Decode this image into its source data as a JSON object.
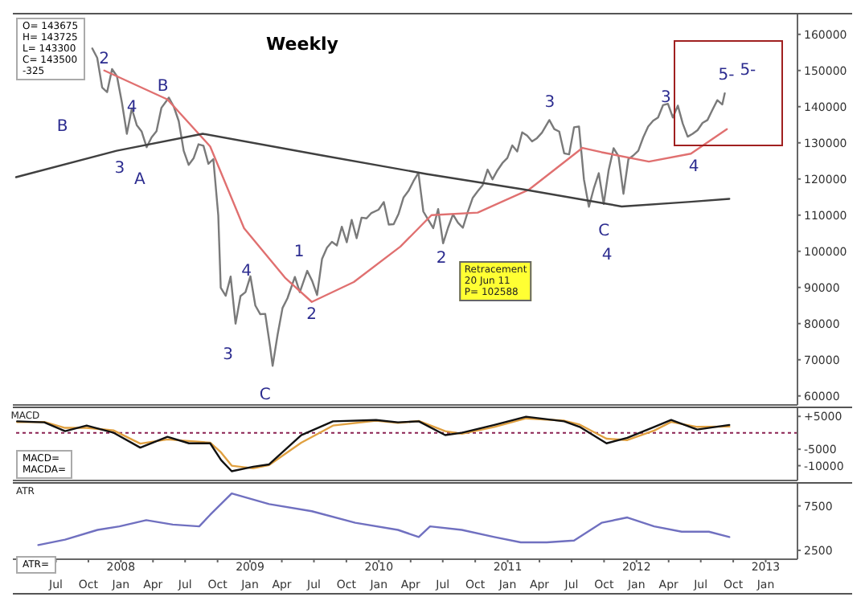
{
  "chart_data": [
    {
      "type": "line",
      "title": "Weekly",
      "xlim": [
        "2007-03-01",
        "2013-04-01"
      ],
      "ylim": [
        57500,
        165500
      ],
      "yticks": [
        60000,
        70000,
        80000,
        90000,
        100000,
        110000,
        120000,
        130000,
        140000,
        150000,
        160000
      ],
      "tick_labels": "y",
      "series": [
        {
          "color": "#7a7a7a",
          "x": [
            "2007-10-12",
            "2007-10-26",
            "2007-11-09",
            "2007-11-23",
            "2007-12-07",
            "2007-12-21",
            "2008-01-04",
            "2008-01-18",
            "2008-02-01",
            "2008-02-15",
            "2008-02-29",
            "2008-03-14",
            "2008-03-28",
            "2008-04-11",
            "2008-04-25",
            "2008-05-16",
            "2008-05-30",
            "2008-06-13",
            "2008-06-27",
            "2008-07-11",
            "2008-07-25",
            "2008-08-08",
            "2008-08-22",
            "2008-09-05",
            "2008-09-19",
            "2008-10-03",
            "2008-10-10",
            "2008-10-24",
            "2008-11-07",
            "2008-11-21",
            "2008-12-05",
            "2008-12-19",
            "2009-01-02",
            "2009-01-16",
            "2009-01-30",
            "2009-02-13",
            "2009-02-27",
            "2009-03-06",
            "2009-03-20",
            "2009-04-03",
            "2009-04-17",
            "2009-05-08",
            "2009-05-22",
            "2009-06-12",
            "2009-06-26",
            "2009-07-10",
            "2009-07-24",
            "2009-08-07",
            "2009-08-21",
            "2009-09-04",
            "2009-09-18",
            "2009-10-02",
            "2009-10-16",
            "2009-10-30",
            "2009-11-13",
            "2009-11-27",
            "2009-12-11",
            "2009-12-31",
            "2010-01-15",
            "2010-01-29",
            "2010-02-12",
            "2010-02-26",
            "2010-03-12",
            "2010-03-26",
            "2010-04-09",
            "2010-04-23",
            "2010-05-07",
            "2010-05-21",
            "2010-06-04",
            "2010-06-18",
            "2010-07-02",
            "2010-07-16",
            "2010-07-30",
            "2010-08-13",
            "2010-08-27",
            "2010-09-10",
            "2010-09-24",
            "2010-10-08",
            "2010-10-22",
            "2010-11-05",
            "2010-11-19",
            "2010-12-03",
            "2010-12-17",
            "2010-12-31",
            "2011-01-14",
            "2011-01-28",
            "2011-02-11",
            "2011-02-25",
            "2011-03-11",
            "2011-03-25",
            "2011-04-08",
            "2011-04-29",
            "2011-05-13",
            "2011-05-27",
            "2011-06-10",
            "2011-06-24",
            "2011-07-08",
            "2011-07-22",
            "2011-08-05",
            "2011-08-19",
            "2011-09-02",
            "2011-09-16",
            "2011-09-30",
            "2011-10-14",
            "2011-10-28",
            "2011-11-11",
            "2011-11-25",
            "2011-12-09",
            "2011-12-23",
            "2012-01-06",
            "2012-01-20",
            "2012-02-03",
            "2012-02-17",
            "2012-03-02",
            "2012-03-16",
            "2012-03-30",
            "2012-04-13",
            "2012-04-27",
            "2012-05-11",
            "2012-05-25",
            "2012-06-08",
            "2012-06-22",
            "2012-07-06",
            "2012-07-20",
            "2012-08-03",
            "2012-08-17",
            "2012-08-31",
            "2012-09-07"
          ],
          "values": [
            156100,
            153500,
            145300,
            144000,
            150400,
            148400,
            141100,
            132500,
            139500,
            134900,
            133100,
            128800,
            131500,
            133200,
            139700,
            142500,
            140000,
            136000,
            127800,
            123900,
            125700,
            129600,
            129200,
            124200,
            125500,
            109900,
            89900,
            87700,
            93000,
            80000,
            87600,
            88700,
            93100,
            85000,
            82600,
            82700,
            73500,
            68300,
            76900,
            84300,
            87000,
            92900,
            88700,
            94600,
            91800,
            87900,
            97900,
            101000,
            102600,
            101600,
            106800,
            102500,
            108700,
            103600,
            109300,
            109100,
            110600,
            111500,
            113600,
            107400,
            107500,
            110400,
            114900,
            116700,
            119400,
            121700,
            111000,
            108700,
            106400,
            111700,
            102200,
            106500,
            110200,
            107900,
            106500,
            110900,
            114800,
            116600,
            118300,
            122600,
            119900,
            122400,
            124400,
            125800,
            129300,
            127600,
            132900,
            132000,
            130400,
            131300,
            132800,
            136300,
            133800,
            133100,
            127100,
            126800,
            134300,
            134500,
            119900,
            112300,
            117400,
            121600,
            113100,
            122400,
            128500,
            126300,
            115900,
            125500,
            126500,
            127800,
            131500,
            134500,
            136100,
            137000,
            140400,
            140800,
            137000,
            140300,
            135300,
            131700,
            132500,
            133500,
            135500,
            136300,
            139100,
            141800,
            140600,
            143700
          ]
        },
        {
          "color": "#e07070",
          "x": [
            "2007-11-15",
            "2008-05-12",
            "2008-09-10",
            "2008-12-15",
            "2009-04-10",
            "2009-06-25",
            "2009-10-22",
            "2010-03-03",
            "2010-05-30",
            "2010-10-08",
            "2011-03-03",
            "2011-08-01",
            "2011-09-24",
            "2012-02-05",
            "2012-06-03",
            "2012-09-13"
          ],
          "values": [
            150000,
            142000,
            129000,
            106400,
            92700,
            86000,
            91500,
            101300,
            110000,
            110700,
            117100,
            128600,
            127400,
            124800,
            127000,
            133800
          ]
        },
        {
          "color": "#404040",
          "x": [
            "2007-03-10",
            "2007-12-20",
            "2008-08-20",
            "2009-07-25",
            "2010-05-15",
            "2011-02-15",
            "2011-11-20",
            "2012-06-03",
            "2012-09-20"
          ],
          "values": [
            120500,
            127800,
            132500,
            126500,
            121400,
            117100,
            112400,
            113700,
            114500
          ]
        }
      ],
      "annotations": [
        "O= 143675",
        "H= 143725",
        "L= 143300",
        "C= 143500",
        "-325",
        "B",
        "2",
        "3",
        "4",
        "A",
        "B",
        "3",
        "4",
        "C",
        "1",
        "2",
        "2",
        "3",
        "C",
        "4",
        "Retracement\n20 Jun 11\nP=   102588",
        "3",
        "4",
        "5-",
        "5-"
      ]
    },
    {
      "type": "line",
      "xlim": [
        "2007-03-01",
        "2013-04-01"
      ],
      "ylim": [
        -14500,
        7500
      ],
      "yticks": [
        {
          "value": 5000,
          "label": "+5000"
        },
        -5000,
        -10000
      ],
      "tick_labels": "y",
      "ref_lines": [
        {
          "axis": "y",
          "value": 0,
          "color": "#8b2252",
          "line_style": "dotted"
        }
      ],
      "annotations": [
        "MACD",
        "MACD=",
        "MACDA="
      ],
      "series": [
        {
          "color": "#e0a040",
          "x": [
            "2007-03-13",
            "2007-05-29",
            "2007-07-27",
            "2007-09-26",
            "2007-12-12",
            "2008-02-25",
            "2008-05-12",
            "2008-07-12",
            "2008-09-10",
            "2008-10-11",
            "2008-11-10",
            "2009-01-10",
            "2009-02-24",
            "2009-05-26",
            "2009-08-24",
            "2009-12-24",
            "2010-02-24",
            "2010-04-24",
            "2010-07-08",
            "2010-08-24",
            "2010-11-24",
            "2011-02-22",
            "2011-06-10",
            "2011-07-24",
            "2011-10-08",
            "2011-12-06",
            "2012-02-20",
            "2012-04-08",
            "2012-06-21",
            "2012-09-20"
          ],
          "values": [
            3300,
            3300,
            1500,
            1500,
            700,
            -3300,
            -2000,
            -2500,
            -3000,
            -6000,
            -10000,
            -10800,
            -9800,
            -3000,
            2200,
            3700,
            3000,
            3600,
            500,
            -300,
            1800,
            4400,
            3700,
            2500,
            -1800,
            -2200,
            700,
            3300,
            1800,
            1900
          ]
        },
        {
          "color": "#111111",
          "x": [
            "2007-03-13",
            "2007-05-29",
            "2007-07-27",
            "2007-09-26",
            "2007-12-12",
            "2008-02-25",
            "2008-05-12",
            "2008-07-12",
            "2008-09-10",
            "2008-10-11",
            "2008-11-10",
            "2009-01-10",
            "2009-02-24",
            "2009-05-26",
            "2009-08-24",
            "2009-12-24",
            "2010-02-24",
            "2010-04-24",
            "2010-07-08",
            "2010-08-24",
            "2010-11-24",
            "2011-02-22",
            "2011-06-10",
            "2011-07-24",
            "2011-10-08",
            "2011-12-06",
            "2012-02-20",
            "2012-04-08",
            "2012-06-21",
            "2012-09-20"
          ],
          "values": [
            3500,
            3200,
            500,
            2200,
            0,
            -4500,
            -1200,
            -3200,
            -3200,
            -8300,
            -11700,
            -10300,
            -9600,
            -700,
            3500,
            3900,
            3200,
            3500,
            -700,
            0,
            2400,
            4900,
            3500,
            1800,
            -3200,
            -1500,
            1800,
            3900,
            1000,
            2400
          ]
        }
      ]
    },
    {
      "type": "line",
      "xlim": [
        "2007-03-01",
        "2013-04-01"
      ],
      "ylim": [
        1500,
        10000
      ],
      "yticks": [
        2500,
        7500
      ],
      "annotations": [
        "ATR",
        "ATR="
      ],
      "x2lim": [
        "2007-03-01",
        "2013-04-01"
      ],
      "xticks": [
        {
          "value": "2007-07",
          "label": "Jul"
        },
        {
          "value": "2007-10",
          "label": "Oct"
        },
        {
          "value": "2008-01",
          "label": "Jan"
        },
        {
          "value": "2008-04",
          "label": "Apr"
        },
        {
          "value": "2008-07",
          "label": "Jul"
        },
        {
          "value": "2008-10",
          "label": "Oct"
        },
        {
          "value": "2009-01",
          "label": "Jan"
        },
        {
          "value": "2009-04",
          "label": "Apr"
        },
        {
          "value": "2009-07",
          "label": "Jul"
        },
        {
          "value": "2009-10",
          "label": "Oct"
        },
        {
          "value": "2010-01",
          "label": "Jan"
        },
        {
          "value": "2010-04",
          "label": "Apr"
        },
        {
          "value": "2010-07",
          "label": "Jul"
        },
        {
          "value": "2010-10",
          "label": "Oct"
        },
        {
          "value": "2011-01",
          "label": "Jan"
        },
        {
          "value": "2011-04",
          "label": "Apr"
        },
        {
          "value": "2011-07",
          "label": "Jul"
        },
        {
          "value": "2011-10",
          "label": "Oct"
        },
        {
          "value": "2012-01",
          "label": "Jan"
        },
        {
          "value": "2012-04",
          "label": "Apr"
        },
        {
          "value": "2012-07",
          "label": "Jul"
        },
        {
          "value": "2012-10",
          "label": "Oct"
        },
        {
          "value": "2013-01",
          "label": "Jan"
        }
      ],
      "x2ticks": [
        {
          "value": "2008-01",
          "label": "2008"
        },
        {
          "value": "2009-01",
          "label": "2009"
        },
        {
          "value": "2010-01",
          "label": "2010"
        },
        {
          "value": "2011-01",
          "label": "2011"
        },
        {
          "value": "2012-01",
          "label": "2012"
        },
        {
          "value": "2013-01",
          "label": "2013"
        }
      ],
      "series": [
        {
          "color": "#7070c0",
          "x": [
            "2007-05-12",
            "2007-07-27",
            "2007-10-27",
            "2007-12-28",
            "2008-03-13",
            "2008-05-27",
            "2008-08-10",
            "2008-09-10",
            "2008-11-10",
            "2009-02-24",
            "2009-06-25",
            "2009-10-26",
            "2010-02-24",
            "2010-04-24",
            "2010-05-26",
            "2010-08-24",
            "2010-11-24",
            "2011-02-07",
            "2011-04-22",
            "2011-07-08",
            "2011-09-24",
            "2011-12-06",
            "2012-02-20",
            "2012-05-08",
            "2012-07-24",
            "2012-09-20"
          ],
          "values": [
            3100,
            3700,
            4800,
            5200,
            5900,
            5400,
            5200,
            6500,
            8900,
            7700,
            6900,
            5600,
            4800,
            4000,
            5200,
            4800,
            4000,
            3400,
            3400,
            3600,
            5600,
            6200,
            5200,
            4600,
            4600,
            4000
          ]
        }
      ]
    }
  ]
}
